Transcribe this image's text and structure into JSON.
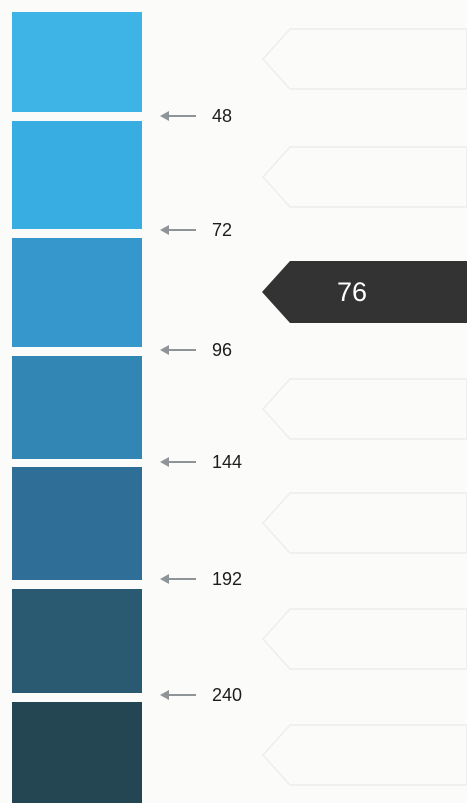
{
  "scale": {
    "swatches": [
      {
        "name": "swatch-1",
        "color": "#3eb3e6"
      },
      {
        "name": "swatch-2",
        "color": "#38ade2"
      },
      {
        "name": "swatch-3",
        "color": "#3597cb"
      },
      {
        "name": "swatch-4",
        "color": "#3186b3"
      },
      {
        "name": "swatch-5",
        "color": "#2e6e97"
      },
      {
        "name": "swatch-6",
        "color": "#2a5a72"
      },
      {
        "name": "swatch-7",
        "color": "#244652"
      }
    ],
    "ticks": [
      "48",
      "72",
      "96",
      "144",
      "192",
      "240"
    ],
    "arrow_color": "#8e9498"
  },
  "result": {
    "value": "76",
    "color": "#333333"
  }
}
